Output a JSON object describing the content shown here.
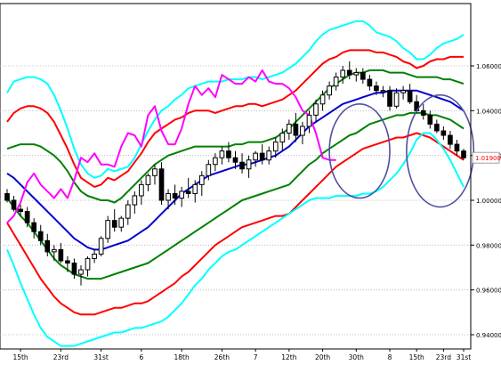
{
  "chart_data": {
    "type": "line",
    "title": "",
    "xlabel": "",
    "ylabel": "",
    "ylim": [
      0.935,
      1.085
    ],
    "grid": true,
    "x_tick_labels": [
      "15th",
      "23rd",
      "31st",
      "6",
      "18th",
      "26th",
      "7",
      "12th",
      "20th",
      "30th",
      "8",
      "15th",
      "23rd",
      "31st"
    ],
    "y_tick_labels": [
      "1.06000",
      "1.04000",
      "1.02000",
      "1.00000",
      "0.98000",
      "0.96000",
      "0.94000"
    ],
    "y_ticks": [
      1.06,
      1.04,
      1.02,
      1.0,
      0.98,
      0.96,
      0.94
    ],
    "current_price_label": "1.01900",
    "current_price": 1.019,
    "n_periods": 69,
    "series": [
      {
        "color": "#00ffff",
        "values": [
          1.048,
          1.053,
          1.054,
          1.055,
          1.055,
          1.054,
          1.052,
          1.047,
          1.04,
          1.032,
          1.023,
          1.016,
          1.012,
          1.01,
          1.011,
          1.014,
          1.013,
          1.014,
          1.015,
          1.019,
          1.025,
          1.031,
          1.036,
          1.04,
          1.042,
          1.045,
          1.047,
          1.05,
          1.051,
          1.052,
          1.053,
          1.053,
          1.053,
          1.054,
          1.054,
          1.054,
          1.055,
          1.055,
          1.054,
          1.055,
          1.056,
          1.057,
          1.059,
          1.061,
          1.064,
          1.067,
          1.071,
          1.074,
          1.076,
          1.077,
          1.078,
          1.079,
          1.08,
          1.08,
          1.078,
          1.075,
          1.074,
          1.073,
          1.071,
          1.068,
          1.066,
          1.063,
          1.063,
          1.065,
          1.068,
          1.07,
          1.071,
          1.072,
          1.074
        ]
      },
      {
        "color": "#ff0000",
        "values": [
          1.035,
          1.039,
          1.041,
          1.042,
          1.042,
          1.041,
          1.039,
          1.035,
          1.029,
          1.023,
          1.016,
          1.01,
          1.008,
          1.006,
          1.007,
          1.01,
          1.009,
          1.011,
          1.013,
          1.017,
          1.021,
          1.026,
          1.03,
          1.032,
          1.034,
          1.036,
          1.037,
          1.039,
          1.04,
          1.04,
          1.04,
          1.039,
          1.04,
          1.041,
          1.042,
          1.042,
          1.043,
          1.043,
          1.042,
          1.043,
          1.044,
          1.045,
          1.047,
          1.049,
          1.052,
          1.055,
          1.058,
          1.061,
          1.063,
          1.064,
          1.066,
          1.067,
          1.067,
          1.067,
          1.067,
          1.066,
          1.066,
          1.065,
          1.064,
          1.062,
          1.061,
          1.059,
          1.06,
          1.062,
          1.063,
          1.063,
          1.064,
          1.064,
          1.064
        ]
      },
      {
        "color": "#008000",
        "values": [
          1.023,
          1.024,
          1.025,
          1.025,
          1.025,
          1.024,
          1.022,
          1.02,
          1.017,
          1.013,
          1.008,
          1.004,
          1.002,
          1.001,
          1.0,
          1.0,
          0.999,
          1.001,
          1.004,
          1.007,
          1.01,
          1.013,
          1.016,
          1.018,
          1.02,
          1.021,
          1.022,
          1.023,
          1.024,
          1.024,
          1.024,
          1.024,
          1.024,
          1.024,
          1.025,
          1.025,
          1.026,
          1.026,
          1.026,
          1.027,
          1.028,
          1.03,
          1.032,
          1.035,
          1.038,
          1.041,
          1.044,
          1.047,
          1.05,
          1.052,
          1.054,
          1.056,
          1.057,
          1.057,
          1.058,
          1.058,
          1.058,
          1.057,
          1.057,
          1.057,
          1.056,
          1.055,
          1.055,
          1.055,
          1.055,
          1.054,
          1.054,
          1.053,
          1.052
        ]
      },
      {
        "color": "#0000cd",
        "values": [
          1.012,
          1.01,
          1.007,
          1.004,
          1.001,
          0.998,
          0.995,
          0.992,
          0.989,
          0.986,
          0.983,
          0.981,
          0.979,
          0.978,
          0.978,
          0.979,
          0.98,
          0.981,
          0.982,
          0.984,
          0.986,
          0.988,
          0.991,
          0.994,
          0.997,
          1.0,
          1.003,
          1.005,
          1.007,
          1.009,
          1.011,
          1.012,
          1.013,
          1.014,
          1.015,
          1.016,
          1.016,
          1.017,
          1.018,
          1.019,
          1.02,
          1.022,
          1.024,
          1.027,
          1.03,
          1.033,
          1.035,
          1.037,
          1.039,
          1.041,
          1.043,
          1.044,
          1.045,
          1.046,
          1.047,
          1.048,
          1.048,
          1.049,
          1.049,
          1.049,
          1.049,
          1.049,
          1.048,
          1.047,
          1.046,
          1.045,
          1.044,
          1.042,
          1.04
        ]
      },
      {
        "color": "#008000",
        "values": [
          1.001,
          0.997,
          0.993,
          0.99,
          0.986,
          0.982,
          0.978,
          0.974,
          0.971,
          0.969,
          0.967,
          0.966,
          0.965,
          0.965,
          0.965,
          0.966,
          0.967,
          0.968,
          0.969,
          0.97,
          0.971,
          0.972,
          0.974,
          0.976,
          0.978,
          0.98,
          0.982,
          0.984,
          0.986,
          0.988,
          0.99,
          0.992,
          0.994,
          0.996,
          0.998,
          1.0,
          1.001,
          1.002,
          1.003,
          1.004,
          1.005,
          1.006,
          1.007,
          1.01,
          1.013,
          1.016,
          1.018,
          1.021,
          1.023,
          1.025,
          1.027,
          1.029,
          1.03,
          1.032,
          1.034,
          1.035,
          1.036,
          1.037,
          1.038,
          1.038,
          1.039,
          1.039,
          1.039,
          1.038,
          1.038,
          1.037,
          1.036,
          1.034,
          1.032
        ]
      },
      {
        "color": "#ff0000",
        "values": [
          0.99,
          0.985,
          0.98,
          0.975,
          0.97,
          0.965,
          0.961,
          0.957,
          0.954,
          0.952,
          0.95,
          0.949,
          0.949,
          0.949,
          0.95,
          0.951,
          0.952,
          0.952,
          0.953,
          0.954,
          0.954,
          0.955,
          0.957,
          0.959,
          0.961,
          0.963,
          0.966,
          0.968,
          0.971,
          0.974,
          0.977,
          0.98,
          0.982,
          0.984,
          0.986,
          0.988,
          0.989,
          0.99,
          0.991,
          0.992,
          0.993,
          0.993,
          0.994,
          0.997,
          1.0,
          1.003,
          1.006,
          1.009,
          1.012,
          1.015,
          1.017,
          1.019,
          1.021,
          1.023,
          1.024,
          1.025,
          1.026,
          1.027,
          1.028,
          1.028,
          1.029,
          1.03,
          1.029,
          1.028,
          1.026,
          1.024,
          1.022,
          1.02,
          1.018
        ]
      },
      {
        "color": "#00ffff",
        "values": [
          0.978,
          0.971,
          0.963,
          0.956,
          0.949,
          0.943,
          0.939,
          0.937,
          0.935,
          0.935,
          0.935,
          0.936,
          0.937,
          0.938,
          0.939,
          0.94,
          0.941,
          0.941,
          0.942,
          0.943,
          0.943,
          0.944,
          0.945,
          0.946,
          0.948,
          0.951,
          0.954,
          0.958,
          0.962,
          0.965,
          0.969,
          0.972,
          0.975,
          0.977,
          0.978,
          0.98,
          0.982,
          0.984,
          0.986,
          0.988,
          0.99,
          0.992,
          0.994,
          0.996,
          0.998,
          1.0,
          1.001,
          1.001,
          1.001,
          1.002,
          1.002,
          1.002,
          1.002,
          1.003,
          1.003,
          1.004,
          1.006,
          1.009,
          1.012,
          1.016,
          1.021,
          1.027,
          1.03,
          1.03,
          1.027,
          1.023,
          1.018,
          1.012,
          1.006
        ]
      },
      {
        "color": "#ff00ff",
        "values": [
          0.99,
          0.993,
          0.999,
          1.008,
          1.012,
          1.007,
          1.004,
          1.001,
          1.005,
          1.001,
          1.009,
          1.019,
          1.017,
          1.021,
          1.016,
          1.016,
          1.015,
          1.024,
          1.03,
          1.029,
          1.024,
          1.038,
          1.042,
          1.031,
          1.025,
          1.025,
          1.032,
          1.043,
          1.051,
          1.047,
          1.05,
          1.046,
          1.056,
          1.054,
          1.052,
          1.052,
          1.055,
          1.053,
          1.058,
          1.053,
          1.052,
          1.052,
          1.05,
          1.046,
          1.04,
          1.038,
          1.03,
          1.019,
          1.018,
          1.018,
          null,
          null,
          null,
          null,
          null,
          null,
          null,
          null,
          null,
          null,
          null,
          null,
          null,
          null,
          null,
          null,
          null,
          null,
          null
        ]
      }
    ],
    "candles": [
      [
        1.003,
        1.005,
        0.999,
        1.0
      ],
      [
        1.0,
        1.002,
        0.995,
        0.996
      ],
      [
        0.996,
        0.998,
        0.993,
        0.995
      ],
      [
        0.995,
        0.997,
        0.988,
        0.99
      ],
      [
        0.99,
        0.992,
        0.983,
        0.986
      ],
      [
        0.986,
        0.989,
        0.98,
        0.982
      ],
      [
        0.982,
        0.985,
        0.975,
        0.977
      ],
      [
        0.977,
        0.98,
        0.973,
        0.978
      ],
      [
        0.978,
        0.981,
        0.972,
        0.973
      ],
      [
        0.973,
        0.975,
        0.968,
        0.972
      ],
      [
        0.972,
        0.974,
        0.965,
        0.967
      ],
      [
        0.967,
        0.971,
        0.962,
        0.969
      ],
      [
        0.969,
        0.975,
        0.966,
        0.974
      ],
      [
        0.974,
        0.978,
        0.972,
        0.976
      ],
      [
        0.976,
        0.984,
        0.975,
        0.983
      ],
      [
        0.983,
        0.993,
        0.981,
        0.991
      ],
      [
        0.991,
        0.996,
        0.986,
        0.988
      ],
      [
        0.988,
        0.993,
        0.986,
        0.992
      ],
      [
        0.992,
        1.0,
        0.989,
        0.998
      ],
      [
        0.998,
        1.004,
        0.994,
        1.002
      ],
      [
        1.002,
        1.009,
        0.998,
        1.007
      ],
      [
        1.007,
        1.012,
        1.004,
        1.011
      ],
      [
        1.011,
        1.016,
        1.007,
        1.014
      ],
      [
        1.014,
        1.017,
        0.998,
        1.0
      ],
      [
        1.0,
        1.005,
        0.996,
        1.003
      ],
      [
        1.003,
        1.007,
        0.998,
        1.001
      ],
      [
        1.001,
        1.006,
        0.997,
        1.004
      ],
      [
        1.004,
        1.01,
        1.001,
        1.003
      ],
      [
        1.003,
        1.009,
        0.999,
        1.007
      ],
      [
        1.007,
        1.013,
        1.002,
        1.011
      ],
      [
        1.011,
        1.018,
        1.009,
        1.016
      ],
      [
        1.016,
        1.021,
        1.013,
        1.019
      ],
      [
        1.019,
        1.024,
        1.016,
        1.022
      ],
      [
        1.022,
        1.026,
        1.017,
        1.019
      ],
      [
        1.019,
        1.022,
        1.014,
        1.017
      ],
      [
        1.017,
        1.021,
        1.012,
        1.014
      ],
      [
        1.014,
        1.02,
        1.01,
        1.018
      ],
      [
        1.018,
        1.022,
        1.015,
        1.021
      ],
      [
        1.021,
        1.025,
        1.016,
        1.018
      ],
      [
        1.018,
        1.024,
        1.016,
        1.022
      ],
      [
        1.022,
        1.028,
        1.019,
        1.026
      ],
      [
        1.026,
        1.032,
        1.022,
        1.03
      ],
      [
        1.03,
        1.036,
        1.027,
        1.034
      ],
      [
        1.034,
        1.039,
        1.026,
        1.029
      ],
      [
        1.029,
        1.035,
        1.025,
        1.033
      ],
      [
        1.033,
        1.04,
        1.03,
        1.038
      ],
      [
        1.038,
        1.045,
        1.035,
        1.043
      ],
      [
        1.043,
        1.049,
        1.04,
        1.047
      ],
      [
        1.047,
        1.053,
        1.045,
        1.051
      ],
      [
        1.051,
        1.057,
        1.049,
        1.055
      ],
      [
        1.055,
        1.06,
        1.052,
        1.058
      ],
      [
        1.058,
        1.062,
        1.054,
        1.056
      ],
      [
        1.056,
        1.059,
        1.053,
        1.057
      ],
      [
        1.057,
        1.059,
        1.052,
        1.054
      ],
      [
        1.054,
        1.056,
        1.049,
        1.051
      ],
      [
        1.051,
        1.053,
        1.047,
        1.049
      ],
      [
        1.049,
        1.051,
        1.046,
        1.049
      ],
      [
        1.049,
        1.051,
        1.04,
        1.042
      ],
      [
        1.042,
        1.05,
        1.041,
        1.048
      ],
      [
        1.048,
        1.051,
        1.045,
        1.049
      ],
      [
        1.049,
        1.052,
        1.043,
        1.044
      ],
      [
        1.044,
        1.047,
        1.039,
        1.04
      ],
      [
        1.04,
        1.043,
        1.036,
        1.038
      ],
      [
        1.038,
        1.04,
        1.032,
        1.034
      ],
      [
        1.034,
        1.036,
        1.03,
        1.031
      ],
      [
        1.031,
        1.033,
        1.027,
        1.029
      ],
      [
        1.029,
        1.031,
        1.023,
        1.025
      ],
      [
        1.025,
        1.027,
        1.02,
        1.022
      ],
      [
        1.022,
        1.023,
        1.018,
        1.019
      ]
    ],
    "annotations": [
      {
        "shape": "ellipse",
        "color": "#5050a0",
        "x_center": 52.5,
        "y_center": 1.022,
        "x_radius": 4.5,
        "y_radius": 0.021
      },
      {
        "shape": "ellipse",
        "color": "#5050a0",
        "x_center": 64.5,
        "y_center": 1.022,
        "x_radius": 5.0,
        "y_radius": 0.025
      }
    ]
  }
}
